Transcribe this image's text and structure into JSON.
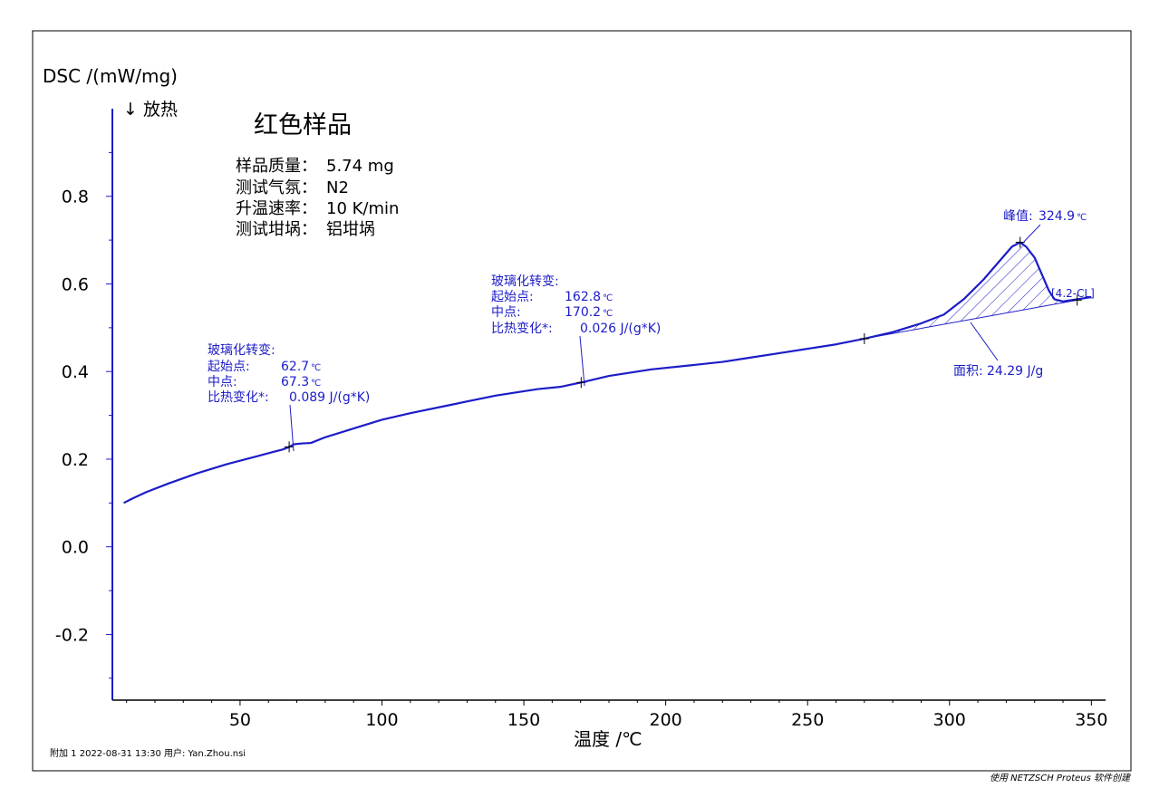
{
  "chart_data": {
    "type": "line",
    "title": "红色样品",
    "info": [
      {
        "label": "样品质量：",
        "value": "5.74 mg"
      },
      {
        "label": "测试气氛：",
        "value": "N2"
      },
      {
        "label": "升温速率：",
        "value": "10 K/min"
      },
      {
        "label": "测试坩埚：",
        "value": "铝坩埚"
      }
    ],
    "ylabel": "DSC /(mW/mg)",
    "direction_label": "↓ 放热",
    "xlabel": "温度 /℃",
    "xlim": [
      5,
      355
    ],
    "ylim": [
      -0.35,
      1.0
    ],
    "xticks": [
      {
        "v": 50,
        "label": "50"
      },
      {
        "v": 100,
        "label": "100"
      },
      {
        "v": 150,
        "label": "150"
      },
      {
        "v": 200,
        "label": "200"
      },
      {
        "v": 250,
        "label": "250"
      },
      {
        "v": 300,
        "label": "300"
      },
      {
        "v": 350,
        "label": "350"
      }
    ],
    "yticks": [
      {
        "v": 0.8,
        "label": "0.8"
      },
      {
        "v": 0.6,
        "label": "0.6"
      },
      {
        "v": 0.4,
        "label": "0.4"
      },
      {
        "v": 0.2,
        "label": "0.2"
      },
      {
        "v": 0.0,
        "label": "0.0"
      },
      {
        "v": -0.2,
        "label": "-0.2"
      }
    ],
    "series": [
      {
        "color": "#1c1cc8",
        "x": [
          9,
          12,
          17,
          25,
          35,
          45,
          55,
          62,
          65,
          67.3,
          69,
          72,
          75,
          80,
          90,
          100,
          110,
          125,
          140,
          155,
          162.8,
          170.2,
          180,
          195,
          210,
          220,
          230,
          240,
          250,
          260,
          270,
          280,
          290,
          298,
          305,
          312,
          318,
          322,
          324.9,
          327,
          330,
          333,
          335,
          337,
          340,
          343,
          346,
          350
        ],
        "y": [
          0.1,
          0.11,
          0.125,
          0.145,
          0.168,
          0.188,
          0.205,
          0.217,
          0.222,
          0.228,
          0.234,
          0.236,
          0.237,
          0.25,
          0.27,
          0.29,
          0.305,
          0.325,
          0.345,
          0.36,
          0.365,
          0.375,
          0.39,
          0.405,
          0.415,
          0.422,
          0.432,
          0.442,
          0.452,
          0.462,
          0.475,
          0.49,
          0.51,
          0.53,
          0.565,
          0.61,
          0.655,
          0.685,
          0.695,
          0.685,
          0.66,
          0.615,
          0.585,
          0.565,
          0.56,
          0.563,
          0.566,
          0.57
        ]
      }
    ],
    "peak_area": {
      "baseline_start": [
        270,
        0.475
      ],
      "baseline_end": [
        345,
        0.563
      ]
    },
    "tick_marks": [
      [
        67.3,
        0.228
      ],
      [
        170.2,
        0.375
      ],
      [
        270,
        0.475
      ],
      [
        324.9,
        0.695
      ],
      [
        345,
        0.563
      ]
    ],
    "annotations": [
      {
        "lines": [
          {
            "label": "玻璃化转变:",
            "value": "",
            "unit": ""
          },
          {
            "label": "起始点:",
            "value": "62.7",
            "unit": "℃"
          },
          {
            "label": "中点:",
            "value": "67.3",
            "unit": "℃"
          },
          {
            "label": "比热变化*:",
            "value": "0.089 J/(g*K)",
            "unit": ""
          }
        ],
        "target": [
          67.3,
          0.228
        ]
      },
      {
        "lines": [
          {
            "label": "玻璃化转变:",
            "value": "",
            "unit": ""
          },
          {
            "label": "起始点:",
            "value": "162.8",
            "unit": "℃"
          },
          {
            "label": "中点:",
            "value": "170.2",
            "unit": "℃"
          },
          {
            "label": "比热变化*:",
            "value": "0.026 J/(g*K)",
            "unit": ""
          }
        ],
        "target": [
          170.2,
          0.375
        ]
      },
      {
        "lines": [
          {
            "label": "峰值:",
            "value": "324.9",
            "unit": "℃"
          }
        ],
        "target": [
          324.9,
          0.695
        ]
      },
      {
        "lines": [
          {
            "label": "面积:",
            "value": "24.29 J/g",
            "unit": ""
          }
        ],
        "target": [
          308,
          0.535
        ]
      },
      {
        "lines": [
          {
            "label": "",
            "value": "[4.2-CL]",
            "unit": ""
          }
        ],
        "target": [
          345,
          0.563
        ]
      }
    ]
  },
  "footer": {
    "left": "附加 1    2022-08-31 13:30    用户: Yan.Zhou.nsi",
    "right": "使用 NETZSCH Proteus 软件创建"
  }
}
